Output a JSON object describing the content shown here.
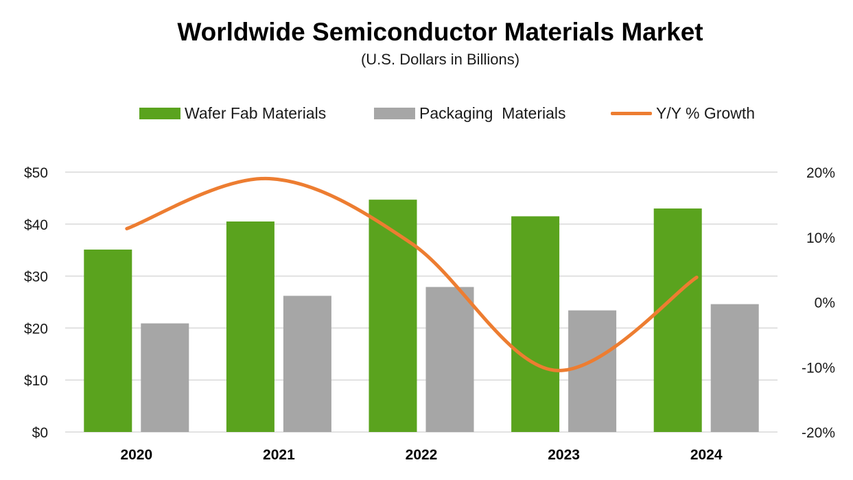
{
  "chart_data": {
    "type": "bar",
    "title": "Worldwide Semiconductor Materials Market",
    "subtitle": "(U.S. Dollars in Billions)",
    "categories": [
      "2020",
      "2021",
      "2022",
      "2023",
      "2024"
    ],
    "series": [
      {
        "name": "Wafer Fab Materials",
        "type": "bar",
        "axis": "left",
        "color": "#5aa31e",
        "values": [
          35.1,
          40.5,
          44.7,
          41.5,
          43.0
        ]
      },
      {
        "name": "Packaging  Materials",
        "type": "bar",
        "axis": "left",
        "color": "#a6a6a6",
        "values": [
          20.9,
          26.2,
          27.9,
          23.4,
          24.6
        ]
      },
      {
        "name": "Y/Y % Growth",
        "type": "line",
        "axis": "right",
        "color": "#ed7d31",
        "values": [
          11.3,
          19.0,
          9.0,
          -10.5,
          3.8
        ]
      }
    ],
    "ylim_left": [
      0,
      50
    ],
    "ylim_right": [
      -20,
      20
    ],
    "left_ticks": [
      "$0",
      "$10",
      "$20",
      "$30",
      "$40",
      "$50"
    ],
    "right_ticks": [
      "-20%",
      "-10%",
      "0%",
      "10%",
      "20%"
    ],
    "grid": true,
    "legend_position": "top"
  }
}
